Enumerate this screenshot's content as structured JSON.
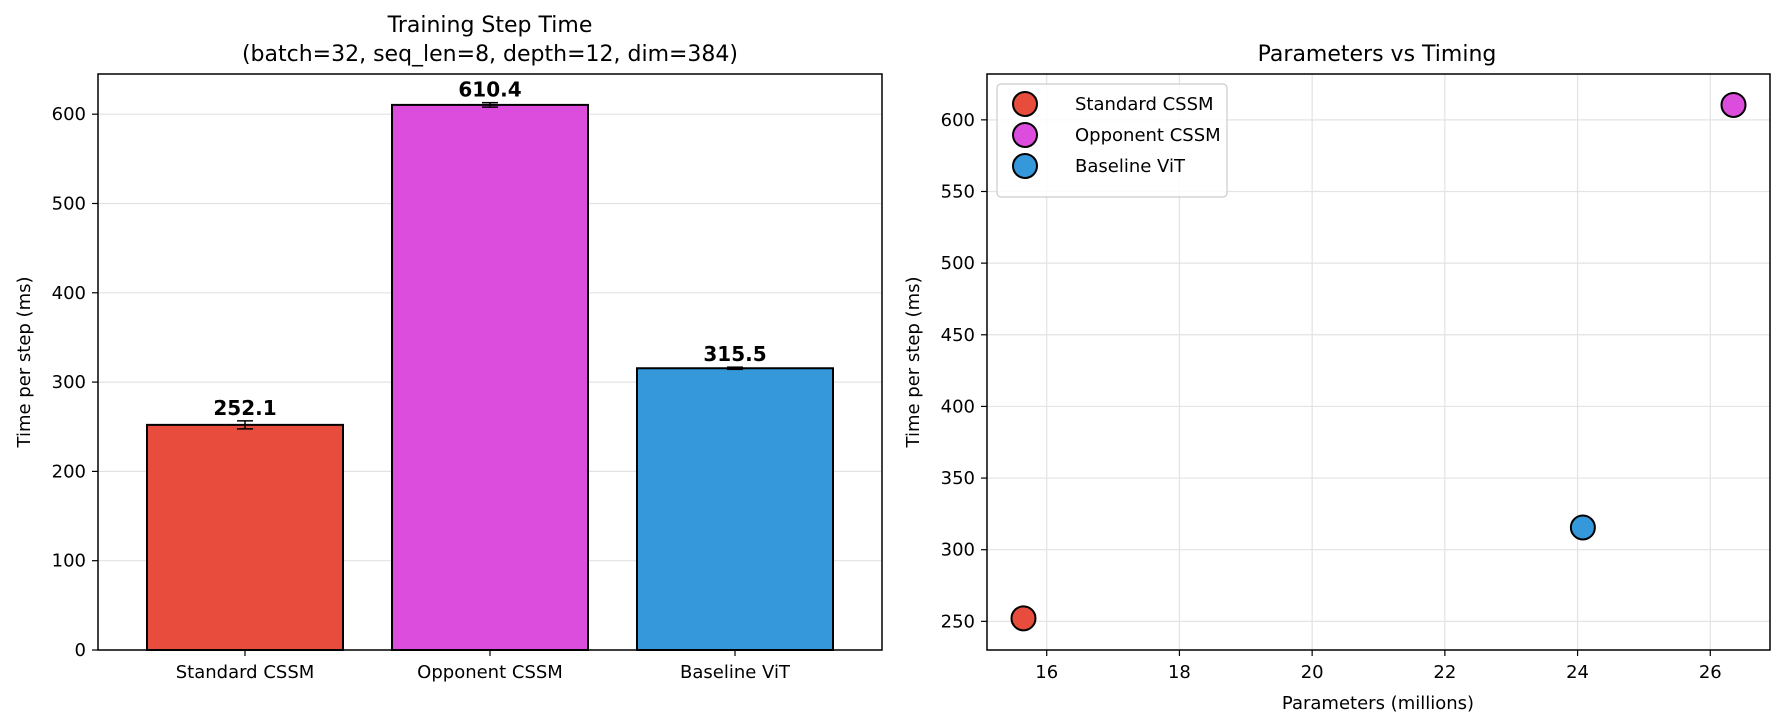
{
  "chart_data": [
    {
      "type": "bar",
      "title": "Training Step Time",
      "subtitle": "(batch=32, seq_len=8, depth=12, dim=384)",
      "xlabel": "",
      "ylabel": "Time per step (ms)",
      "categories": [
        "Standard CSSM",
        "Opponent CSSM",
        "Baseline ViT"
      ],
      "values": [
        252.1,
        610.4,
        315.5
      ],
      "value_labels": [
        "252.1",
        "610.4",
        "315.5"
      ],
      "error": [
        4.5,
        2.5,
        1.2
      ],
      "colors": [
        "#e74c3c",
        "#dd4ddd",
        "#3498db"
      ],
      "ylim": [
        0,
        645
      ],
      "yticks": [
        0,
        100,
        200,
        300,
        400,
        500,
        600
      ],
      "grid": "horizontal"
    },
    {
      "type": "scatter",
      "title": "Parameters vs Timing",
      "xlabel": "Parameters (millions)",
      "ylabel": "Time per step (ms)",
      "series": [
        {
          "name": "Standard CSSM",
          "x": [
            15.65
          ],
          "y": [
            252.1
          ],
          "color": "#e74c3c"
        },
        {
          "name": "Opponent CSSM",
          "x": [
            26.35
          ],
          "y": [
            610.4
          ],
          "color": "#dd4ddd"
        },
        {
          "name": "Baseline ViT",
          "x": [
            24.08
          ],
          "y": [
            315.5
          ],
          "color": "#3498db"
        }
      ],
      "xlim": [
        15.1,
        26.9
      ],
      "ylim": [
        230,
        632
      ],
      "xticks": [
        16,
        18,
        20,
        22,
        24,
        26
      ],
      "yticks": [
        250,
        300,
        350,
        400,
        450,
        500,
        550,
        600
      ],
      "grid": "both",
      "legend_position": "top-left"
    }
  ]
}
